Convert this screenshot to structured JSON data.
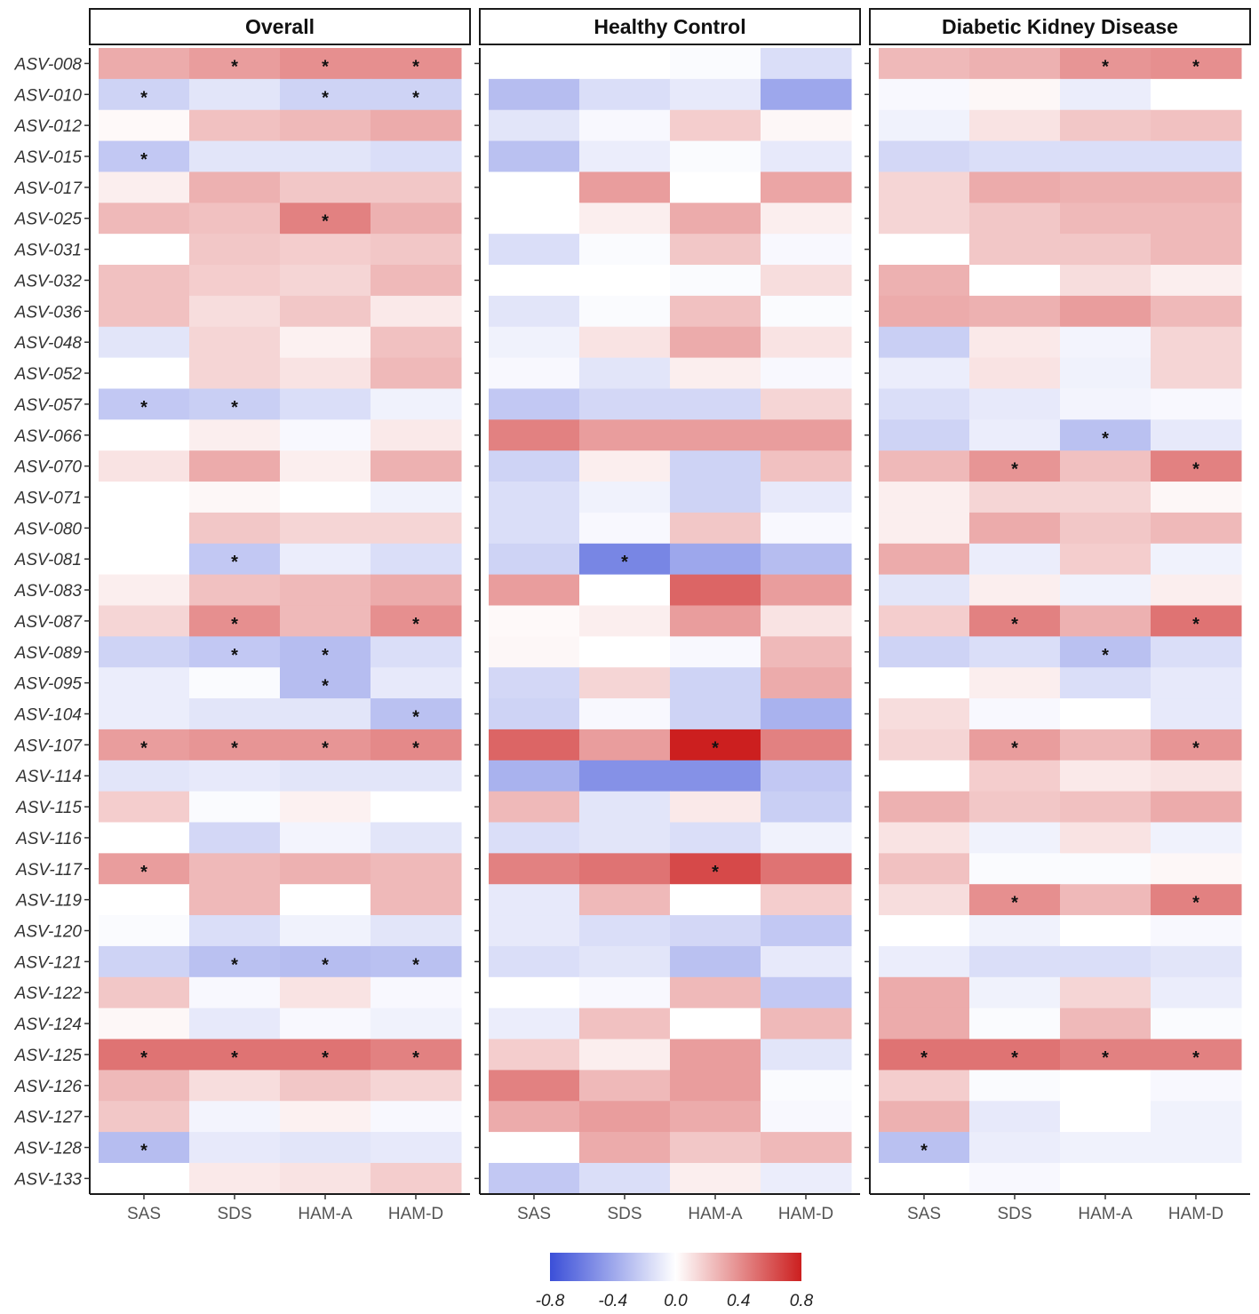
{
  "chart_data": {
    "type": "heatmap",
    "facets": [
      "Overall",
      "Healthy Control",
      "Diabetic Kidney Disease"
    ],
    "rows": [
      "ASV-008",
      "ASV-010",
      "ASV-012",
      "ASV-015",
      "ASV-017",
      "ASV-025",
      "ASV-031",
      "ASV-032",
      "ASV-036",
      "ASV-048",
      "ASV-052",
      "ASV-057",
      "ASV-066",
      "ASV-070",
      "ASV-071",
      "ASV-080",
      "ASV-081",
      "ASV-083",
      "ASV-087",
      "ASV-089",
      "ASV-095",
      "ASV-104",
      "ASV-107",
      "ASV-114",
      "ASV-115",
      "ASV-116",
      "ASV-117",
      "ASV-119",
      "ASV-120",
      "ASV-121",
      "ASV-122",
      "ASV-124",
      "ASV-125",
      "ASV-126",
      "ASV-127",
      "ASV-128",
      "ASV-133"
    ],
    "columns": [
      "SAS",
      "SDS",
      "HAM-A",
      "HAM-D"
    ],
    "color_scale": {
      "min": -0.8,
      "max": 0.8,
      "low": "#3b4fd8",
      "mid": "#ffffff",
      "high": "#cc1f1f"
    },
    "legend": {
      "ticks": [
        "-0.8",
        "-0.4",
        "0.0",
        "0.4",
        "0.8"
      ],
      "tick_values": [
        -0.8,
        -0.4,
        0.0,
        0.4,
        0.8
      ],
      "position": "bottom"
    },
    "values": [
      [
        [
          0.3,
          0.35,
          0.4,
          0.4
        ],
        [
          -0.2,
          -0.12,
          -0.2,
          -0.2
        ],
        [
          0.02,
          0.22,
          0.25,
          0.3
        ],
        [
          -0.25,
          -0.12,
          -0.12,
          -0.15
        ],
        [
          0.06,
          0.28,
          0.2,
          0.2
        ],
        [
          0.25,
          0.22,
          0.45,
          0.28
        ],
        [
          0.0,
          0.2,
          0.18,
          0.2
        ],
        [
          0.22,
          0.18,
          0.15,
          0.25
        ],
        [
          0.22,
          0.12,
          0.2,
          0.08
        ],
        [
          -0.12,
          0.15,
          0.05,
          0.22
        ],
        [
          0.0,
          0.15,
          0.1,
          0.25
        ],
        [
          -0.25,
          -0.22,
          -0.15,
          -0.06
        ],
        [
          0.0,
          0.06,
          -0.03,
          0.08
        ],
        [
          0.1,
          0.3,
          0.06,
          0.28
        ],
        [
          0.0,
          0.03,
          0.0,
          -0.06
        ],
        [
          0.0,
          0.2,
          0.15,
          0.15
        ],
        [
          0.0,
          -0.25,
          -0.08,
          -0.15
        ],
        [
          0.06,
          0.22,
          0.25,
          0.3
        ],
        [
          0.15,
          0.4,
          0.25,
          0.4
        ],
        [
          -0.2,
          -0.25,
          -0.3,
          -0.15
        ],
        [
          -0.08,
          -0.02,
          -0.3,
          -0.1
        ],
        [
          -0.08,
          -0.12,
          -0.12,
          -0.28
        ],
        [
          0.35,
          0.38,
          0.38,
          0.42
        ],
        [
          -0.12,
          -0.1,
          -0.12,
          -0.12
        ],
        [
          0.18,
          -0.02,
          0.05,
          0.0
        ],
        [
          0.0,
          -0.18,
          -0.05,
          -0.12
        ],
        [
          0.35,
          0.25,
          0.28,
          0.25
        ],
        [
          0.0,
          0.25,
          0.0,
          0.25
        ],
        [
          -0.02,
          -0.15,
          -0.06,
          -0.12
        ],
        [
          -0.2,
          -0.28,
          -0.3,
          -0.28
        ],
        [
          0.2,
          -0.03,
          0.1,
          -0.03
        ],
        [
          0.03,
          -0.1,
          -0.03,
          -0.06
        ],
        [
          0.5,
          0.5,
          0.5,
          0.45
        ],
        [
          0.25,
          0.12,
          0.2,
          0.15
        ],
        [
          0.2,
          -0.05,
          0.05,
          -0.03
        ],
        [
          -0.3,
          -0.1,
          -0.12,
          -0.1
        ],
        [
          0.0,
          0.08,
          0.1,
          0.18
        ]
      ],
      [
        [
          0.0,
          0.0,
          -0.02,
          -0.15
        ],
        [
          -0.3,
          -0.15,
          -0.1,
          -0.4
        ],
        [
          -0.12,
          -0.03,
          0.18,
          0.03
        ],
        [
          -0.28,
          -0.08,
          -0.02,
          -0.1
        ],
        [
          0.0,
          0.35,
          0.0,
          0.32
        ],
        [
          0.0,
          0.06,
          0.3,
          0.06
        ],
        [
          -0.15,
          -0.02,
          0.2,
          -0.03
        ],
        [
          0.0,
          0.0,
          -0.02,
          0.12
        ],
        [
          -0.12,
          -0.02,
          0.22,
          -0.02
        ],
        [
          -0.06,
          0.1,
          0.3,
          0.1
        ],
        [
          -0.03,
          -0.12,
          0.06,
          -0.03
        ],
        [
          -0.25,
          -0.18,
          -0.18,
          0.15
        ],
        [
          0.45,
          0.35,
          0.35,
          0.35
        ],
        [
          -0.2,
          0.06,
          -0.2,
          0.22
        ],
        [
          -0.15,
          -0.06,
          -0.2,
          -0.1
        ],
        [
          -0.15,
          -0.03,
          0.2,
          -0.03
        ],
        [
          -0.2,
          -0.55,
          -0.4,
          -0.3
        ],
        [
          0.35,
          0.0,
          0.55,
          0.35
        ],
        [
          0.02,
          0.06,
          0.35,
          0.1
        ],
        [
          0.03,
          0.0,
          -0.03,
          0.25
        ],
        [
          -0.18,
          0.15,
          -0.2,
          0.3
        ],
        [
          -0.2,
          -0.03,
          -0.2,
          -0.35
        ],
        [
          0.55,
          0.35,
          0.8,
          0.45
        ],
        [
          -0.35,
          -0.5,
          -0.5,
          -0.25
        ],
        [
          0.25,
          -0.12,
          0.08,
          -0.22
        ],
        [
          -0.15,
          -0.12,
          -0.15,
          -0.06
        ],
        [
          0.45,
          0.5,
          0.65,
          0.5
        ],
        [
          -0.1,
          0.25,
          0.0,
          0.18
        ],
        [
          -0.1,
          -0.15,
          -0.18,
          -0.25
        ],
        [
          -0.15,
          -0.12,
          -0.28,
          -0.1
        ],
        [
          0.0,
          -0.03,
          0.25,
          -0.25
        ],
        [
          -0.08,
          0.22,
          0.0,
          0.25
        ],
        [
          0.18,
          0.06,
          0.35,
          -0.12
        ],
        [
          0.45,
          0.25,
          0.35,
          -0.02
        ],
        [
          0.3,
          0.35,
          0.3,
          -0.03
        ],
        [
          0.0,
          0.3,
          0.2,
          0.25
        ],
        [
          -0.25,
          -0.15,
          0.06,
          -0.08
        ]
      ],
      [
        [
          0.25,
          0.28,
          0.38,
          0.4
        ],
        [
          -0.03,
          0.03,
          -0.08,
          0.0
        ],
        [
          -0.06,
          0.1,
          0.2,
          0.22
        ],
        [
          -0.18,
          -0.15,
          -0.15,
          -0.15
        ],
        [
          0.15,
          0.3,
          0.28,
          0.28
        ],
        [
          0.15,
          0.2,
          0.25,
          0.25
        ],
        [
          0.0,
          0.2,
          0.2,
          0.25
        ],
        [
          0.28,
          0.0,
          0.12,
          0.06
        ],
        [
          0.3,
          0.28,
          0.35,
          0.25
        ],
        [
          -0.22,
          0.08,
          -0.05,
          0.15
        ],
        [
          -0.08,
          0.1,
          -0.06,
          0.15
        ],
        [
          -0.15,
          -0.1,
          -0.05,
          -0.03
        ],
        [
          -0.2,
          -0.08,
          -0.28,
          -0.1
        ],
        [
          0.25,
          0.38,
          0.22,
          0.45
        ],
        [
          0.06,
          0.15,
          0.15,
          0.03
        ],
        [
          0.06,
          0.3,
          0.2,
          0.25
        ],
        [
          0.3,
          -0.08,
          0.18,
          -0.06
        ],
        [
          -0.12,
          0.06,
          -0.06,
          0.06
        ],
        [
          0.18,
          0.45,
          0.28,
          0.5
        ],
        [
          -0.2,
          -0.15,
          -0.28,
          -0.15
        ],
        [
          0.0,
          0.06,
          -0.15,
          -0.1
        ],
        [
          0.12,
          -0.03,
          0.0,
          -0.1
        ],
        [
          0.15,
          0.35,
          0.25,
          0.38
        ],
        [
          0.0,
          0.18,
          0.08,
          0.1
        ],
        [
          0.28,
          0.2,
          0.22,
          0.3
        ],
        [
          0.1,
          -0.06,
          0.1,
          -0.06
        ],
        [
          0.22,
          -0.02,
          -0.02,
          0.03
        ],
        [
          0.12,
          0.4,
          0.25,
          0.45
        ],
        [
          0.0,
          -0.06,
          0.0,
          -0.03
        ],
        [
          -0.08,
          -0.15,
          -0.15,
          -0.12
        ],
        [
          0.3,
          -0.06,
          0.15,
          -0.08
        ],
        [
          0.3,
          -0.02,
          0.25,
          -0.02
        ],
        [
          0.5,
          0.5,
          0.45,
          0.45
        ],
        [
          0.18,
          -0.02,
          0.0,
          -0.03
        ],
        [
          0.28,
          -0.1,
          0.0,
          -0.06
        ],
        [
          -0.28,
          -0.08,
          -0.06,
          -0.06
        ],
        [
          0.0,
          -0.03,
          0.0,
          0.0
        ]
      ]
    ],
    "significant": [
      [
        [
          0,
          1
        ],
        [
          0,
          2
        ],
        [
          0,
          3
        ],
        [
          1,
          0
        ],
        [
          1,
          2
        ],
        [
          1,
          3
        ],
        [
          3,
          0
        ],
        [
          5,
          2
        ],
        [
          11,
          0
        ],
        [
          11,
          1
        ],
        [
          16,
          1
        ],
        [
          18,
          1
        ],
        [
          18,
          3
        ],
        [
          19,
          1
        ],
        [
          19,
          2
        ],
        [
          20,
          2
        ],
        [
          21,
          3
        ],
        [
          22,
          0
        ],
        [
          22,
          1
        ],
        [
          22,
          2
        ],
        [
          22,
          3
        ],
        [
          26,
          0
        ],
        [
          29,
          1
        ],
        [
          29,
          2
        ],
        [
          29,
          3
        ],
        [
          32,
          0
        ],
        [
          32,
          1
        ],
        [
          32,
          2
        ],
        [
          32,
          3
        ],
        [
          35,
          0
        ]
      ],
      [
        [
          16,
          1
        ],
        [
          22,
          2
        ],
        [
          26,
          2
        ]
      ],
      [
        [
          0,
          2
        ],
        [
          0,
          3
        ],
        [
          12,
          2
        ],
        [
          13,
          1
        ],
        [
          13,
          3
        ],
        [
          18,
          1
        ],
        [
          18,
          3
        ],
        [
          19,
          2
        ],
        [
          22,
          1
        ],
        [
          22,
          3
        ],
        [
          27,
          1
        ],
        [
          27,
          3
        ],
        [
          32,
          0
        ],
        [
          32,
          1
        ],
        [
          32,
          2
        ],
        [
          32,
          3
        ],
        [
          35,
          0
        ]
      ]
    ],
    "significance_marker": "*"
  }
}
